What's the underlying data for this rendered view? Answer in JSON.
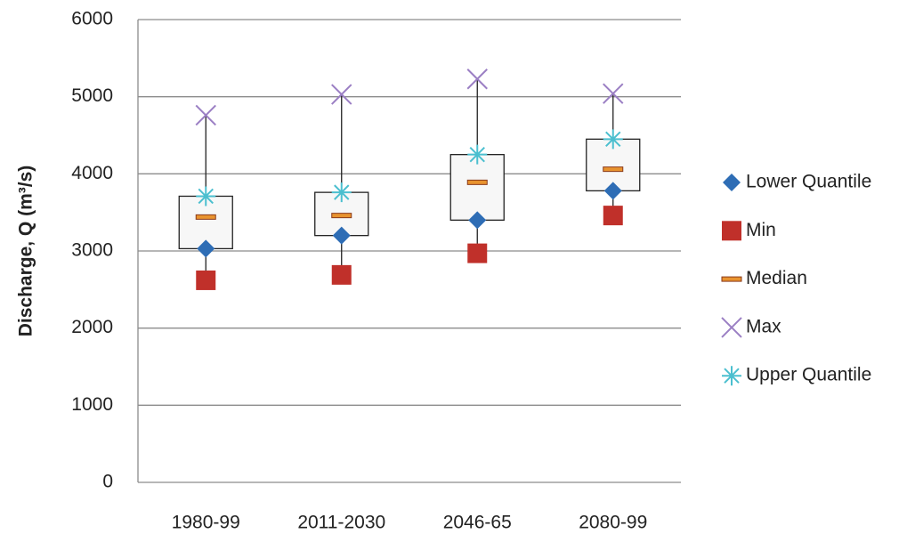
{
  "chart_data": {
    "type": "box",
    "y_label": "Discharge, Q (m³/s)",
    "categories": [
      "1980-99",
      "2011-2030",
      "2046-65",
      "2080-99"
    ],
    "ylim": [
      0,
      6000
    ],
    "yticks": [
      0,
      1000,
      2000,
      3000,
      4000,
      5000,
      6000
    ],
    "grid": true,
    "series": [
      {
        "name": "Lower Quantile",
        "color": "#2e6db5",
        "marker": "diamond",
        "values": [
          3030,
          3200,
          3400,
          3780
        ]
      },
      {
        "name": "Min",
        "color": "#c0302a",
        "marker": "square",
        "values": [
          2620,
          2690,
          2970,
          3460
        ]
      },
      {
        "name": "Median",
        "color": "#e8932f",
        "marker": "dash",
        "values": [
          3440,
          3460,
          3890,
          4060
        ]
      },
      {
        "name": "Max",
        "color": "#9b7fc4",
        "marker": "x",
        "values": [
          4760,
          5030,
          5230,
          5040
        ]
      },
      {
        "name": "Upper Quantile",
        "color": "#4bbfcf",
        "marker": "star",
        "values": [
          3710,
          3760,
          4250,
          4450
        ]
      }
    ]
  }
}
